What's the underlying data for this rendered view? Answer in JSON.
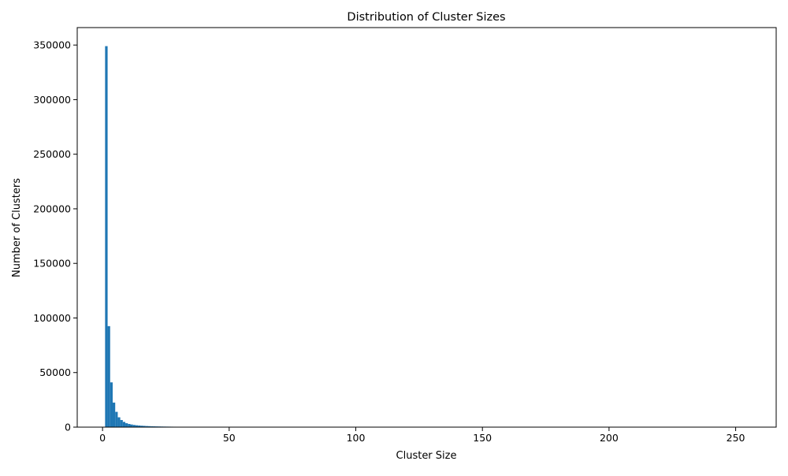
{
  "chart_data": {
    "type": "bar",
    "title": "Distribution of Cluster Sizes",
    "xlabel": "Cluster Size",
    "ylabel": "Number of Clusters",
    "xlim": [
      -10,
      266
    ],
    "ylim": [
      0,
      366000
    ],
    "x_ticks": [
      0,
      50,
      100,
      150,
      200,
      250
    ],
    "y_ticks": [
      0,
      50000,
      100000,
      150000,
      200000,
      250000,
      300000,
      350000
    ],
    "grid": false,
    "bar_color": "#1f77b4",
    "bins": [
      {
        "x0": 1,
        "x1": 2,
        "value": 349000
      },
      {
        "x0": 2,
        "x1": 3,
        "value": 92500
      },
      {
        "x0": 3,
        "x1": 4,
        "value": 41000
      },
      {
        "x0": 4,
        "x1": 5,
        "value": 22500
      },
      {
        "x0": 5,
        "x1": 6,
        "value": 14000
      },
      {
        "x0": 6,
        "x1": 7,
        "value": 9000
      },
      {
        "x0": 7,
        "x1": 8,
        "value": 6500
      },
      {
        "x0": 8,
        "x1": 9,
        "value": 4800
      },
      {
        "x0": 9,
        "x1": 10,
        "value": 3600
      },
      {
        "x0": 10,
        "x1": 11,
        "value": 2900
      },
      {
        "x0": 11,
        "x1": 12,
        "value": 2400
      },
      {
        "x0": 12,
        "x1": 13,
        "value": 2000
      },
      {
        "x0": 13,
        "x1": 14,
        "value": 1700
      },
      {
        "x0": 14,
        "x1": 15,
        "value": 1500
      },
      {
        "x0": 15,
        "x1": 16,
        "value": 1300
      },
      {
        "x0": 16,
        "x1": 17,
        "value": 1150
      },
      {
        "x0": 17,
        "x1": 18,
        "value": 1000
      },
      {
        "x0": 18,
        "x1": 19,
        "value": 900
      },
      {
        "x0": 19,
        "x1": 20,
        "value": 800
      },
      {
        "x0": 20,
        "x1": 21,
        "value": 720
      },
      {
        "x0": 21,
        "x1": 22,
        "value": 650
      },
      {
        "x0": 22,
        "x1": 23,
        "value": 600
      },
      {
        "x0": 23,
        "x1": 24,
        "value": 550
      },
      {
        "x0": 24,
        "x1": 25,
        "value": 500
      },
      {
        "x0": 25,
        "x1": 26,
        "value": 460
      },
      {
        "x0": 26,
        "x1": 27,
        "value": 430
      },
      {
        "x0": 27,
        "x1": 28,
        "value": 400
      },
      {
        "x0": 28,
        "x1": 29,
        "value": 370
      },
      {
        "x0": 29,
        "x1": 30,
        "value": 340
      },
      {
        "x0": 30,
        "x1": 31,
        "value": 310
      },
      {
        "x0": 31,
        "x1": 32,
        "value": 290
      },
      {
        "x0": 32,
        "x1": 33,
        "value": 270
      },
      {
        "x0": 33,
        "x1": 34,
        "value": 250
      },
      {
        "x0": 34,
        "x1": 35,
        "value": 120
      },
      {
        "x0": 35,
        "x1": 36,
        "value": 80
      },
      {
        "x0": 36,
        "x1": 38,
        "value": 60
      },
      {
        "x0": 38,
        "x1": 40,
        "value": 45
      }
    ]
  }
}
